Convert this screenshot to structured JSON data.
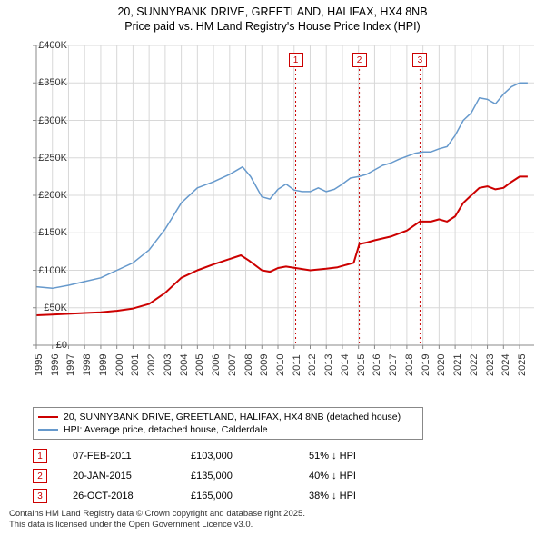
{
  "title_line1": "20, SUNNYBANK DRIVE, GREETLAND, HALIFAX, HX4 8NB",
  "title_line2": "Price paid vs. HM Land Registry's House Price Index (HPI)",
  "chart": {
    "type": "line",
    "x_domain": [
      1995,
      2025.9
    ],
    "y_domain": [
      0,
      400000
    ],
    "y_ticks": [
      0,
      50000,
      100000,
      150000,
      200000,
      250000,
      300000,
      350000,
      400000
    ],
    "y_tick_labels": [
      "£0",
      "£50K",
      "£100K",
      "£150K",
      "£200K",
      "£250K",
      "£300K",
      "£350K",
      "£400K"
    ],
    "x_ticks": [
      1995,
      1996,
      1997,
      1998,
      1999,
      2000,
      2001,
      2002,
      2003,
      2004,
      2005,
      2006,
      2007,
      2008,
      2009,
      2010,
      2011,
      2012,
      2013,
      2014,
      2015,
      2016,
      2017,
      2018,
      2019,
      2020,
      2021,
      2022,
      2023,
      2024,
      2025
    ],
    "background_color": "#ffffff",
    "grid_color": "#d8d8d8",
    "axis_color": "#888888",
    "series": [
      {
        "name": "property",
        "color": "#cc0000",
        "width": 2,
        "points": [
          [
            1995.0,
            40000
          ],
          [
            1996.0,
            41000
          ],
          [
            1997.0,
            42000
          ],
          [
            1998.0,
            43000
          ],
          [
            1999.0,
            44000
          ],
          [
            2000.0,
            46000
          ],
          [
            2001.0,
            49000
          ],
          [
            2002.0,
            55000
          ],
          [
            2003.0,
            70000
          ],
          [
            2004.0,
            90000
          ],
          [
            2005.0,
            100000
          ],
          [
            2006.0,
            108000
          ],
          [
            2007.0,
            115000
          ],
          [
            2007.7,
            120000
          ],
          [
            2008.2,
            113000
          ],
          [
            2009.0,
            100000
          ],
          [
            2009.5,
            98000
          ],
          [
            2010.0,
            103000
          ],
          [
            2010.5,
            105000
          ],
          [
            2011.1,
            103000
          ],
          [
            2012.0,
            100000
          ],
          [
            2013.0,
            102000
          ],
          [
            2013.7,
            104000
          ],
          [
            2014.2,
            107000
          ],
          [
            2014.7,
            110000
          ],
          [
            2015.05,
            135000
          ],
          [
            2015.5,
            137000
          ],
          [
            2016.0,
            140000
          ],
          [
            2017.0,
            145000
          ],
          [
            2018.0,
            153000
          ],
          [
            2018.8,
            165000
          ],
          [
            2019.5,
            165000
          ],
          [
            2020.0,
            168000
          ],
          [
            2020.5,
            165000
          ],
          [
            2021.0,
            172000
          ],
          [
            2021.5,
            190000
          ],
          [
            2022.0,
            200000
          ],
          [
            2022.5,
            210000
          ],
          [
            2023.0,
            212000
          ],
          [
            2023.5,
            208000
          ],
          [
            2024.0,
            210000
          ],
          [
            2024.5,
            218000
          ],
          [
            2025.0,
            225000
          ],
          [
            2025.5,
            225000
          ]
        ]
      },
      {
        "name": "hpi",
        "color": "#6699cc",
        "width": 1.5,
        "points": [
          [
            1995.0,
            78000
          ],
          [
            1996.0,
            76000
          ],
          [
            1997.0,
            80000
          ],
          [
            1998.0,
            85000
          ],
          [
            1999.0,
            90000
          ],
          [
            2000.0,
            100000
          ],
          [
            2001.0,
            110000
          ],
          [
            2002.0,
            127000
          ],
          [
            2003.0,
            155000
          ],
          [
            2004.0,
            190000
          ],
          [
            2005.0,
            210000
          ],
          [
            2006.0,
            218000
          ],
          [
            2007.0,
            228000
          ],
          [
            2007.8,
            238000
          ],
          [
            2008.3,
            225000
          ],
          [
            2009.0,
            198000
          ],
          [
            2009.5,
            195000
          ],
          [
            2010.0,
            208000
          ],
          [
            2010.5,
            215000
          ],
          [
            2011.0,
            207000
          ],
          [
            2011.5,
            205000
          ],
          [
            2012.0,
            205000
          ],
          [
            2012.5,
            210000
          ],
          [
            2013.0,
            205000
          ],
          [
            2013.5,
            208000
          ],
          [
            2014.0,
            215000
          ],
          [
            2014.5,
            223000
          ],
          [
            2015.0,
            225000
          ],
          [
            2015.5,
            228000
          ],
          [
            2016.0,
            234000
          ],
          [
            2016.5,
            240000
          ],
          [
            2017.0,
            243000
          ],
          [
            2017.5,
            248000
          ],
          [
            2018.0,
            252000
          ],
          [
            2018.5,
            256000
          ],
          [
            2019.0,
            258000
          ],
          [
            2019.5,
            258000
          ],
          [
            2020.0,
            262000
          ],
          [
            2020.5,
            265000
          ],
          [
            2021.0,
            280000
          ],
          [
            2021.5,
            300000
          ],
          [
            2022.0,
            310000
          ],
          [
            2022.5,
            330000
          ],
          [
            2023.0,
            328000
          ],
          [
            2023.5,
            322000
          ],
          [
            2024.0,
            335000
          ],
          [
            2024.5,
            345000
          ],
          [
            2025.0,
            350000
          ],
          [
            2025.5,
            350000
          ]
        ]
      }
    ],
    "markers": [
      {
        "label": "1",
        "x": 2011.1
      },
      {
        "label": "2",
        "x": 2015.05
      },
      {
        "label": "3",
        "x": 2018.82
      }
    ]
  },
  "legend": {
    "items": [
      {
        "color": "#cc0000",
        "label": "20, SUNNYBANK DRIVE, GREETLAND, HALIFAX, HX4 8NB (detached house)"
      },
      {
        "color": "#6699cc",
        "label": "HPI: Average price, detached house, Calderdale"
      }
    ]
  },
  "sales": [
    {
      "n": "1",
      "date": "07-FEB-2011",
      "price": "£103,000",
      "diff": "51% ↓ HPI"
    },
    {
      "n": "2",
      "date": "20-JAN-2015",
      "price": "£135,000",
      "diff": "40% ↓ HPI"
    },
    {
      "n": "3",
      "date": "26-OCT-2018",
      "price": "£165,000",
      "diff": "38% ↓ HPI"
    }
  ],
  "footer_line1": "Contains HM Land Registry data © Crown copyright and database right 2025.",
  "footer_line2": "This data is licensed under the Open Government Licence v3.0."
}
